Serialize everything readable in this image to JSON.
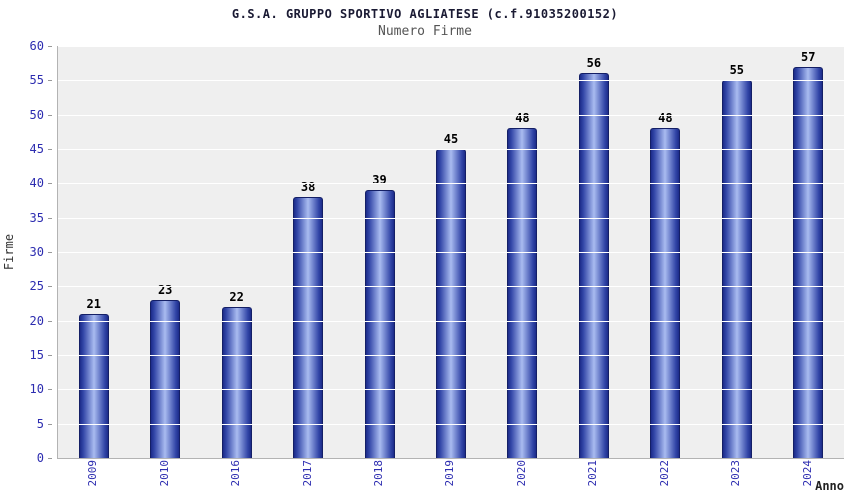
{
  "header": {
    "title": "G.S.A. GRUPPO SPORTIVO AGLIATESE (c.f.91035200152)",
    "subtitle": "Numero Firme"
  },
  "chart_data": {
    "type": "bar",
    "title": "G.S.A. GRUPPO SPORTIVO AGLIATESE (c.f.91035200152)",
    "subtitle": "Numero Firme",
    "xlabel": "Anno",
    "ylabel": "Firme",
    "categories": [
      "2009",
      "2010",
      "2016",
      "2017",
      "2018",
      "2019",
      "2020",
      "2021",
      "2022",
      "2023",
      "2024"
    ],
    "values": [
      21,
      23,
      22,
      38,
      39,
      45,
      48,
      56,
      48,
      55,
      57
    ],
    "ylim": [
      0,
      60
    ],
    "ytick_step": 5,
    "grid": true,
    "legend": "none",
    "colors": {
      "bar_edge": "#1c2b8a",
      "bar_center": "#a9bbf0",
      "bar_border": "#141f66",
      "axis_text": "#2d2db0",
      "plot_background": "#efefef",
      "grid_line": "#ffffff",
      "title_text": "#1a1a33",
      "subtitle_text": "#555555",
      "value_label_text": "#000000"
    }
  }
}
